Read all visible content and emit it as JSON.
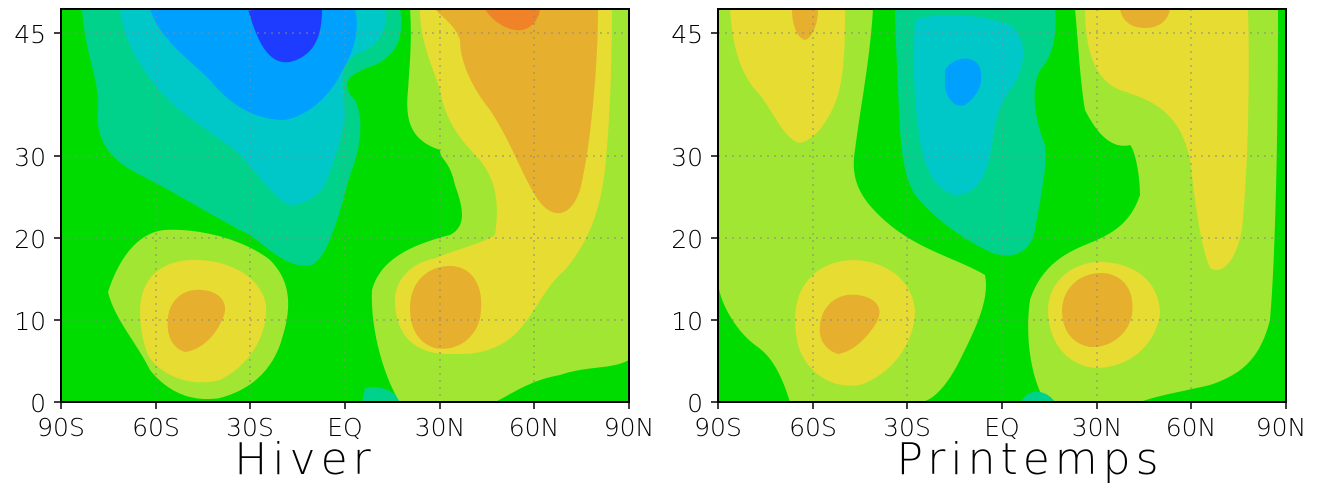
{
  "colors": {
    "background": "#00dc00",
    "light_green": "#a0e632",
    "yellow": "#e6dc32",
    "orange": "#e6af2d",
    "dark_orange": "#f08228",
    "teal": "#00d28c",
    "cyan": "#00c8c8",
    "light_blue": "#00a0ff",
    "blue": "#1e3cff"
  },
  "chart_data": [
    {
      "type": "heatmap",
      "title": "Hiver",
      "x_ticks": [
        "90S",
        "60S",
        "30S",
        "EQ",
        "30N",
        "60N",
        "90N"
      ],
      "y_ticks": [
        "0",
        "10",
        "20",
        "30",
        "45"
      ],
      "xlim": [
        -90,
        90
      ],
      "ylim": [
        0,
        48
      ],
      "grid": true,
      "contour_levels": [
        {
          "color": "blue",
          "region": "top, 25S to 10S, above 43"
        },
        {
          "color": "light_blue",
          "region": "top, 60S to 5S, above 36"
        },
        {
          "color": "cyan",
          "region": "60S to 0, above 25"
        },
        {
          "color": "teal",
          "region": "85S to 0, above 17"
        },
        {
          "color": "dark_orange",
          "region": "top, 40N to 55N, above 46"
        },
        {
          "color": "orange",
          "region": "35N to 80N, above 23"
        },
        {
          "color": "light_green",
          "region": "20N to 90N, all heights"
        },
        {
          "color": "orange",
          "region": "center 45S, 10"
        },
        {
          "color": "orange",
          "region": "center 30N, 10"
        }
      ]
    },
    {
      "type": "heatmap",
      "title": "Printemps",
      "x_ticks": [
        "90S",
        "60S",
        "30S",
        "EQ",
        "30N",
        "60N",
        "90N"
      ],
      "y_ticks": [
        "0",
        "10",
        "20",
        "30",
        "45"
      ],
      "xlim": [
        -90,
        90
      ],
      "ylim": [
        0,
        48
      ],
      "grid": true,
      "contour_levels": [
        {
          "color": "light_blue",
          "region": "center 20S, 39"
        },
        {
          "color": "cyan",
          "region": "35S to 5S, above 25"
        },
        {
          "color": "teal",
          "region": "45S to 5N, above 18"
        },
        {
          "color": "yellow",
          "region": "80S to 55S, above 32"
        },
        {
          "color": "yellow",
          "region": "25N to 85N, above 16"
        },
        {
          "color": "orange",
          "region": "center 45S, 10"
        },
        {
          "color": "orange",
          "region": "center 30N, 11"
        }
      ]
    }
  ]
}
